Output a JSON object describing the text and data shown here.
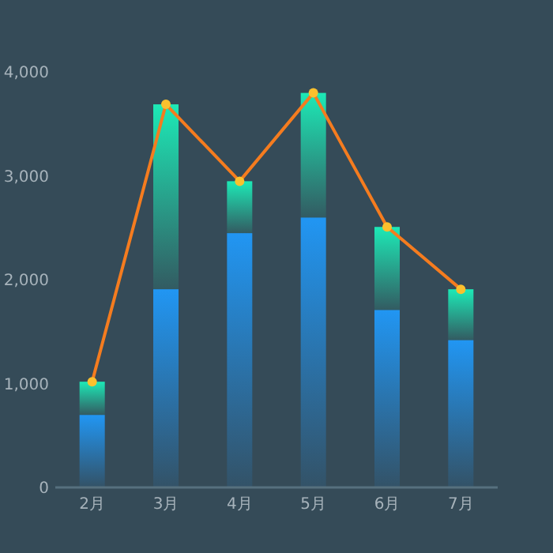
{
  "chart_data": {
    "type": "bar",
    "stacked": true,
    "categories": [
      "2月",
      "3月",
      "4月",
      "5月",
      "6月",
      "7月"
    ],
    "series": [
      {
        "color": "#2196f3",
        "values": [
          690,
          1900,
          2440,
          2590,
          1700,
          1410
        ]
      },
      {
        "color": "#1de9b6",
        "values": [
          320,
          1780,
          500,
          1200,
          800,
          490
        ]
      },
      {
        "type": "line",
        "color": "#f57c1f",
        "marker": "circle",
        "values": [
          1010,
          3680,
          2940,
          3790,
          2500,
          1900
        ]
      }
    ],
    "ylim": [
      0,
      4000
    ],
    "yticks": [
      {
        "value": 0,
        "label": "0"
      },
      {
        "value": 1000,
        "label": "1,000"
      },
      {
        "value": 2000,
        "label": "2,000"
      },
      {
        "value": 3000,
        "label": "3,000"
      },
      {
        "value": 4000,
        "label": "4,000"
      }
    ],
    "grid": false
  }
}
